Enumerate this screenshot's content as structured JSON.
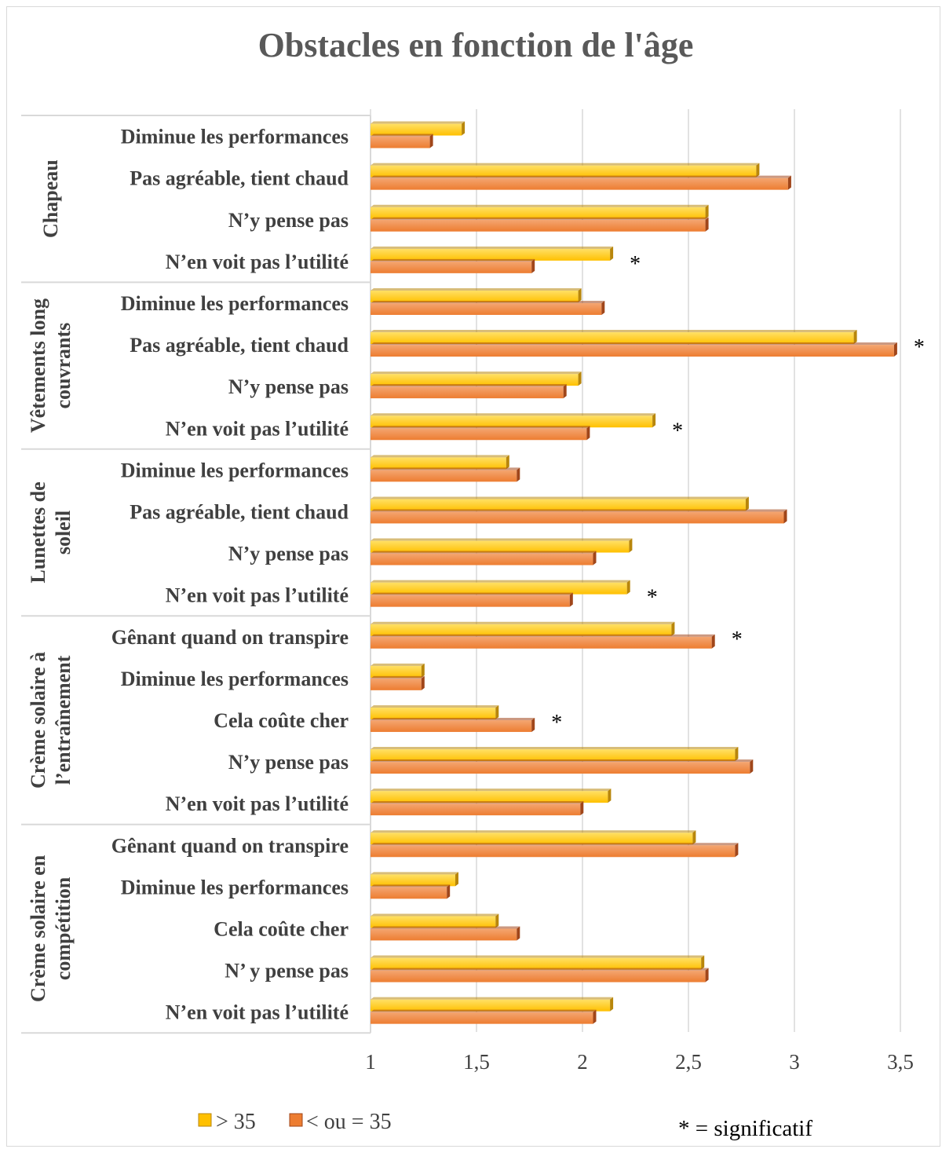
{
  "colors": {
    "older_main": "#ffc000",
    "older_light": "#ffe066",
    "older_dark": "#b8860b",
    "younger_main": "#ed7d31",
    "younger_light": "#f4a672",
    "younger_dark": "#a0461a"
  },
  "chart_data": {
    "type": "bar",
    "orientation": "horizontal",
    "title": "Obstacles en fonction de l'âge",
    "xlim": [
      1,
      3.5
    ],
    "xticks": [
      "1",
      "1,5",
      "2",
      "2,5",
      "3",
      "3,5"
    ],
    "grid": true,
    "legend_position": "bottom-left",
    "series": [
      {
        "name": "> 35",
        "color": "#ffc000"
      },
      {
        "name": "< ou = 35",
        "color": "#ed7d31"
      }
    ],
    "significance_note": "* = significatif",
    "groups": [
      {
        "label_lines": [
          "Chapeau"
        ],
        "items": [
          {
            "label": "Diminue les performances",
            "gt35": 1.43,
            "le35": 1.28,
            "sig": false
          },
          {
            "label": "Pas agréable, tient chaud",
            "gt35": 2.82,
            "le35": 2.97,
            "sig": false
          },
          {
            "label": "N’y pense pas",
            "gt35": 2.58,
            "le35": 2.58,
            "sig": false
          },
          {
            "label": "N’en voit pas l’utilité",
            "gt35": 2.13,
            "le35": 1.76,
            "sig": true
          }
        ]
      },
      {
        "label_lines": [
          "Vêtements long",
          "couvrants"
        ],
        "items": [
          {
            "label": "Diminue les performances",
            "gt35": 1.98,
            "le35": 2.09,
            "sig": false
          },
          {
            "label": "Pas agréable, tient chaud",
            "gt35": 3.28,
            "le35": 3.47,
            "sig": true
          },
          {
            "label": "N’y pense pas",
            "gt35": 1.98,
            "le35": 1.91,
            "sig": false
          },
          {
            "label": "N’en voit pas l’utilité",
            "gt35": 2.33,
            "le35": 2.02,
            "sig": true
          }
        ]
      },
      {
        "label_lines": [
          "Lunettes de",
          "soleil"
        ],
        "items": [
          {
            "label": "Diminue les performances",
            "gt35": 1.64,
            "le35": 1.69,
            "sig": false
          },
          {
            "label": "Pas agréable, tient chaud",
            "gt35": 2.77,
            "le35": 2.95,
            "sig": false
          },
          {
            "label": "N’y pense pas",
            "gt35": 2.22,
            "le35": 2.05,
            "sig": false
          },
          {
            "label": "N’en voit pas l’utilité",
            "gt35": 2.21,
            "le35": 1.94,
            "sig": true
          }
        ]
      },
      {
        "label_lines": [
          "Crème solaire à",
          "l’entraînement"
        ],
        "items": [
          {
            "label": "Gênant quand on transpire",
            "gt35": 2.42,
            "le35": 2.61,
            "sig": true
          },
          {
            "label": "Diminue les performances",
            "gt35": 1.24,
            "le35": 1.24,
            "sig": false
          },
          {
            "label": "Cela coûte cher",
            "gt35": 1.59,
            "le35": 1.76,
            "sig": true
          },
          {
            "label": "N’y pense pas",
            "gt35": 2.72,
            "le35": 2.79,
            "sig": false
          },
          {
            "label": "N’en voit pas l’utilité",
            "gt35": 2.12,
            "le35": 1.99,
            "sig": false
          }
        ]
      },
      {
        "label_lines": [
          "Crème solaire en",
          "compétition"
        ],
        "items": [
          {
            "label": "Gênant quand on transpire",
            "gt35": 2.52,
            "le35": 2.72,
            "sig": false
          },
          {
            "label": "Diminue les performances",
            "gt35": 1.4,
            "le35": 1.36,
            "sig": false
          },
          {
            "label": "Cela coûte cher",
            "gt35": 1.59,
            "le35": 1.69,
            "sig": false
          },
          {
            "label": "N’ y pense pas",
            "gt35": 2.56,
            "le35": 2.58,
            "sig": false
          },
          {
            "label": "N’en voit pas l’utilité",
            "gt35": 2.13,
            "le35": 2.05,
            "sig": false
          }
        ]
      }
    ]
  }
}
